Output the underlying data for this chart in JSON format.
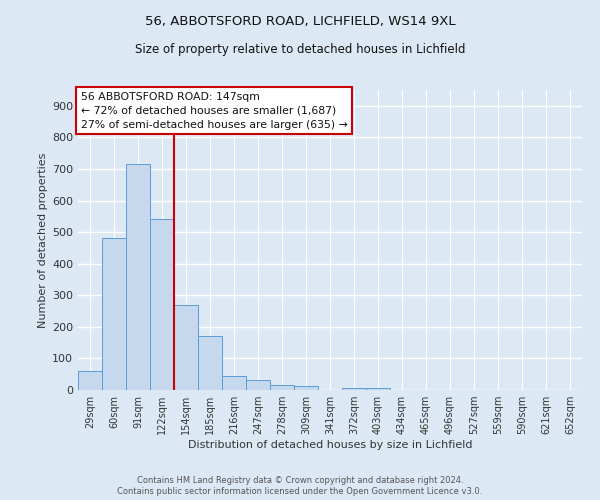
{
  "title1": "56, ABBOTSFORD ROAD, LICHFIELD, WS14 9XL",
  "title2": "Size of property relative to detached houses in Lichfield",
  "xlabel": "Distribution of detached houses by size in Lichfield",
  "ylabel": "Number of detached properties",
  "bar_values": [
    60,
    480,
    715,
    540,
    270,
    170,
    45,
    32,
    17,
    13,
    0,
    7,
    7,
    0,
    0,
    0,
    0,
    0,
    0,
    0,
    0
  ],
  "bar_labels": [
    "29sqm",
    "60sqm",
    "91sqm",
    "122sqm",
    "154sqm",
    "185sqm",
    "216sqm",
    "247sqm",
    "278sqm",
    "309sqm",
    "341sqm",
    "372sqm",
    "403sqm",
    "434sqm",
    "465sqm",
    "496sqm",
    "527sqm",
    "559sqm",
    "590sqm",
    "621sqm",
    "652sqm"
  ],
  "bar_color": "#c5d8ed",
  "bar_edge_color": "#5b9bd5",
  "vline_x": 3.5,
  "vline_color": "#cc0000",
  "annotation_title": "56 ABBOTSFORD ROAD: 147sqm",
  "annotation_line1": "← 72% of detached houses are smaller (1,687)",
  "annotation_line2": "27% of semi-detached houses are larger (635) →",
  "annotation_box_color": "#ffffff",
  "annotation_box_edge": "#cc0000",
  "ylim": [
    0,
    950
  ],
  "yticks": [
    0,
    100,
    200,
    300,
    400,
    500,
    600,
    700,
    800,
    900
  ],
  "footnote1": "Contains HM Land Registry data © Crown copyright and database right 2024.",
  "footnote2": "Contains public sector information licensed under the Open Government Licence v3.0.",
  "bg_color": "#dce9f5",
  "plot_bg_color": "#dce9f5"
}
